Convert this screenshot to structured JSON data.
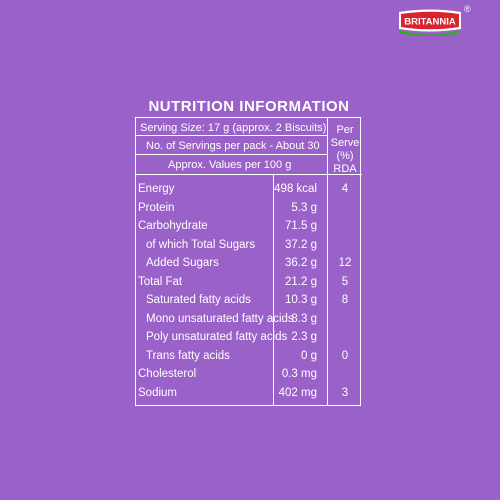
{
  "brand": {
    "logo_text": "BRITANNIA",
    "registered": "®"
  },
  "panel": {
    "title": "NUTRITION INFORMATION",
    "serving_size": "Serving Size: 17 g (approx. 2 Biscuits)",
    "servings_per_pack": "No. of Servings per pack - About 30",
    "approx_values": "Approx. Values per 100 g",
    "per_serve_header_line1": "Per",
    "per_serve_header_line2": "Serve",
    "per_serve_header_line3": "(%) RDA"
  },
  "rows": [
    {
      "label": "Energy",
      "value": "498 kcal",
      "rda": "4",
      "indent": false
    },
    {
      "label": "Protein",
      "value": "5.3 g",
      "rda": "",
      "indent": false
    },
    {
      "label": "Carbohydrate",
      "value": "71.5 g",
      "rda": "",
      "indent": false
    },
    {
      "label": "of which Total Sugars",
      "value": "37.2 g",
      "rda": "",
      "indent": true
    },
    {
      "label": "Added Sugars",
      "value": "36.2 g",
      "rda": "12",
      "indent": true
    },
    {
      "label": "Total Fat",
      "value": "21.2 g",
      "rda": "5",
      "indent": false
    },
    {
      "label": "Saturated fatty acids",
      "value": "10.3 g",
      "rda": "8",
      "indent": true
    },
    {
      "label": "Mono unsaturated fatty acids",
      "value": "8.3 g",
      "rda": "",
      "indent": true
    },
    {
      "label": "Poly unsaturated fatty acids",
      "value": "2.3 g",
      "rda": "",
      "indent": true
    },
    {
      "label": "Trans fatty acids",
      "value": "0 g",
      "rda": "0",
      "indent": true
    },
    {
      "label": "Cholesterol",
      "value": "0.3 mg",
      "rda": "",
      "indent": false
    },
    {
      "label": "Sodium",
      "value": "402 mg",
      "rda": "3",
      "indent": false
    }
  ],
  "colors": {
    "background": "#9a61c9",
    "logo_red": "#d7242e",
    "logo_green": "#3aa535",
    "text": "#ffffff"
  }
}
